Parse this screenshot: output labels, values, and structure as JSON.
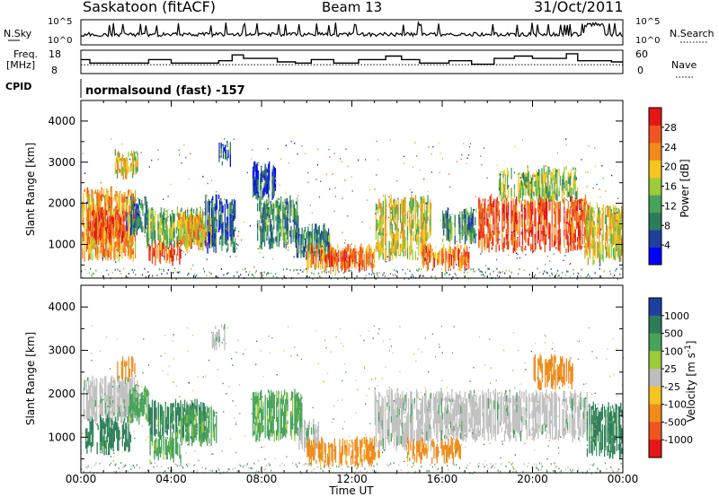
{
  "header": {
    "station": "Saskatoon (fitACF)",
    "beam": "Beam 13",
    "date": "31/Oct/2011"
  },
  "top_panels": {
    "nsky_label": "N.Sky",
    "nsearch_label": "N.Search",
    "nsky_ticks": [
      "10^5",
      "10^0"
    ],
    "nsearch_ticks": [
      "10^5",
      "10^0"
    ],
    "freq_label_1": "Freq.",
    "freq_label_2": "[MHz]",
    "freq_ticks": [
      "18",
      "8"
    ],
    "freq_ticks_values": [
      18,
      8
    ],
    "nave_label": "Nave",
    "nave_ticks": [
      "60",
      "0"
    ],
    "nave_ticks_values": [
      60,
      0
    ],
    "cpid_label": "CPID",
    "cpid_text": "normalsound (fast) -157"
  },
  "colors": {
    "power_scale": [
      "#0000ff",
      "#1f3fa0",
      "#2e7d5a",
      "#48a35a",
      "#9ccc3a",
      "#f7c51f",
      "#f08a1a",
      "#ee5520",
      "#e61616"
    ],
    "velocity_scale": [
      "#1f3fa0",
      "#2e7d5a",
      "#48a35a",
      "#9ccc3a",
      "#bdbdbd",
      "#f7c51f",
      "#f08a1a",
      "#ee5520",
      "#e61616"
    ],
    "ground_scatter": "#c0c0c0"
  },
  "chart_data": [
    {
      "type": "heatmap",
      "panel": "power",
      "xlabel": "",
      "ylabel": "Slant Range [km]",
      "xlim": [
        0,
        24
      ],
      "ylim": [
        180,
        4500
      ],
      "yticks": [
        1000,
        2000,
        3000,
        4000
      ],
      "x_tick_labels": [
        "00:00",
        "04:00",
        "08:00",
        "12:00",
        "16:00",
        "20:00",
        "00:00"
      ],
      "colorbar": {
        "label": "Power [dB]",
        "range": [
          0,
          32
        ],
        "ticks": [
          "4",
          "8",
          "12",
          "16",
          "20",
          "24",
          "28"
        ],
        "tick_values": [
          4,
          8,
          12,
          16,
          20,
          24,
          28
        ]
      },
      "echo_regions": [
        {
          "t0": 0.0,
          "t1": 2.4,
          "r0": 700,
          "r1": 2300,
          "level": 22
        },
        {
          "t0": 0.3,
          "t1": 1.9,
          "r0": 1100,
          "r1": 1800,
          "level": 27
        },
        {
          "t0": 2.0,
          "t1": 2.9,
          "r0": 1300,
          "r1": 2100,
          "level": 8
        },
        {
          "t0": 2.9,
          "t1": 5.4,
          "r0": 1000,
          "r1": 1800,
          "level": 14
        },
        {
          "t0": 3.0,
          "t1": 4.4,
          "r0": 600,
          "r1": 1000,
          "level": 27
        },
        {
          "t0": 4.3,
          "t1": 5.8,
          "r0": 900,
          "r1": 1700,
          "level": 21
        },
        {
          "t0": 5.5,
          "t1": 6.9,
          "r0": 900,
          "r1": 2100,
          "level": 7
        },
        {
          "t0": 7.8,
          "t1": 9.6,
          "r0": 1000,
          "r1": 2100,
          "level": 10
        },
        {
          "t0": 9.5,
          "t1": 11.0,
          "r0": 700,
          "r1": 1400,
          "level": 9
        },
        {
          "t0": 10.0,
          "t1": 13.0,
          "r0": 400,
          "r1": 900,
          "level": 24
        },
        {
          "t0": 10.8,
          "t1": 12.4,
          "r0": 550,
          "r1": 800,
          "level": 28
        },
        {
          "t0": 13.0,
          "t1": 15.5,
          "r0": 700,
          "r1": 2100,
          "level": 18
        },
        {
          "t0": 15.0,
          "t1": 17.2,
          "r0": 450,
          "r1": 900,
          "level": 24
        },
        {
          "t0": 16.0,
          "t1": 17.5,
          "r0": 1100,
          "r1": 1800,
          "level": 10
        },
        {
          "t0": 17.6,
          "t1": 22.5,
          "r0": 900,
          "r1": 2100,
          "level": 27
        },
        {
          "t0": 18.5,
          "t1": 22.0,
          "r0": 2100,
          "r1": 2800,
          "level": 15
        },
        {
          "t0": 22.3,
          "t1": 24.0,
          "r0": 600,
          "r1": 1900,
          "level": 19
        },
        {
          "t0": 1.5,
          "t1": 2.5,
          "r0": 2700,
          "r1": 3200,
          "level": 19
        },
        {
          "t0": 6.1,
          "t1": 6.6,
          "r0": 3000,
          "r1": 3400,
          "level": 5
        },
        {
          "t0": 7.6,
          "t1": 8.6,
          "r0": 2200,
          "r1": 2900,
          "level": 6
        }
      ]
    },
    {
      "type": "heatmap",
      "panel": "velocity",
      "xlabel": "Time UT",
      "ylabel": "Slant Range [km]",
      "xlim": [
        0,
        24
      ],
      "ylim": [
        180,
        4500
      ],
      "yticks": [
        1000,
        2000,
        3000,
        4000
      ],
      "x_tick_labels": [
        "00:00",
        "04:00",
        "08:00",
        "12:00",
        "16:00",
        "20:00",
        "00:00"
      ],
      "colorbar": {
        "label": "Velocity [m s^-1]",
        "ticks": [
          "1000",
          "500",
          "100",
          "25",
          "-25",
          "-100",
          "-500",
          "-1000"
        ],
        "tick_values": [
          1000,
          500,
          100,
          25,
          -25,
          -100,
          -500,
          -1000
        ]
      },
      "echo_regions": [
        {
          "t0": 0.0,
          "t1": 2.6,
          "r0": 1400,
          "r1": 2300,
          "level": "ground"
        },
        {
          "t0": 0.2,
          "t1": 2.2,
          "r0": 700,
          "r1": 1400,
          "level": 500
        },
        {
          "t0": 2.1,
          "t1": 3.0,
          "r0": 1400,
          "r1": 2100,
          "level": 100
        },
        {
          "t0": 3.0,
          "t1": 5.5,
          "r0": 1000,
          "r1": 1800,
          "level": 500
        },
        {
          "t0": 3.0,
          "t1": 4.4,
          "r0": 500,
          "r1": 1000,
          "level": 100
        },
        {
          "t0": 4.4,
          "t1": 6.0,
          "r0": 900,
          "r1": 1600,
          "level": 100
        },
        {
          "t0": 7.6,
          "t1": 9.8,
          "r0": 1000,
          "r1": 2000,
          "level": 100
        },
        {
          "t0": 9.6,
          "t1": 10.6,
          "r0": 700,
          "r1": 1300,
          "level": "ground"
        },
        {
          "t0": 10.0,
          "t1": 13.2,
          "r0": 400,
          "r1": 900,
          "level": -150
        },
        {
          "t0": 13.0,
          "t1": 15.5,
          "r0": 800,
          "r1": 2000,
          "level": "ground"
        },
        {
          "t0": 14.4,
          "t1": 16.8,
          "r0": 500,
          "r1": 900,
          "level": -150
        },
        {
          "t0": 15.5,
          "t1": 22.4,
          "r0": 1000,
          "r1": 2000,
          "level": "ground"
        },
        {
          "t0": 22.4,
          "t1": 24.0,
          "r0": 600,
          "r1": 1700,
          "level": 500
        },
        {
          "t0": 20.0,
          "t1": 21.8,
          "r0": 2200,
          "r1": 2800,
          "level": -300
        },
        {
          "t0": 1.6,
          "t1": 2.4,
          "r0": 2400,
          "r1": 2800,
          "level": -200
        },
        {
          "t0": 5.8,
          "t1": 6.4,
          "r0": 3100,
          "r1": 3500,
          "level": "ground"
        }
      ]
    }
  ]
}
